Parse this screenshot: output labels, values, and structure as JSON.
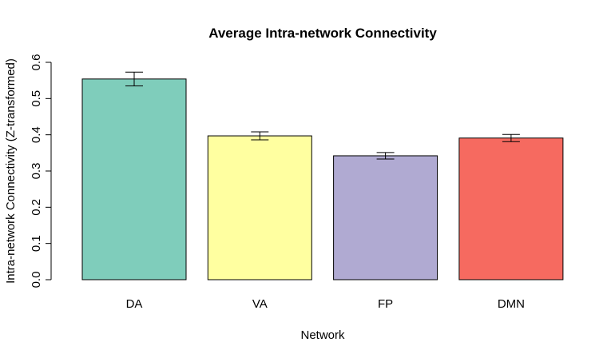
{
  "chart_data": {
    "type": "bar",
    "title": "Average Intra-network Connectivity",
    "xlabel": "Network",
    "ylabel": "Intra-network Connectivity (Z-transformed)",
    "categories": [
      "DA",
      "VA",
      "FP",
      "DMN"
    ],
    "values": [
      0.554,
      0.397,
      0.342,
      0.391
    ],
    "error_low": [
      0.535,
      0.386,
      0.333,
      0.381
    ],
    "error_high": [
      0.573,
      0.408,
      0.351,
      0.401
    ],
    "colors": [
      "#7fcdbb",
      "#ffffa0",
      "#b0aad2",
      "#f66a60"
    ],
    "ylim": [
      0,
      0.6
    ],
    "yticks": [
      0.0,
      0.1,
      0.2,
      0.3,
      0.4,
      0.5,
      0.6
    ],
    "ytick_labels": [
      "0.0",
      "0.1",
      "0.2",
      "0.3",
      "0.4",
      "0.5",
      "0.6"
    ],
    "grid": false,
    "legend": null
  }
}
